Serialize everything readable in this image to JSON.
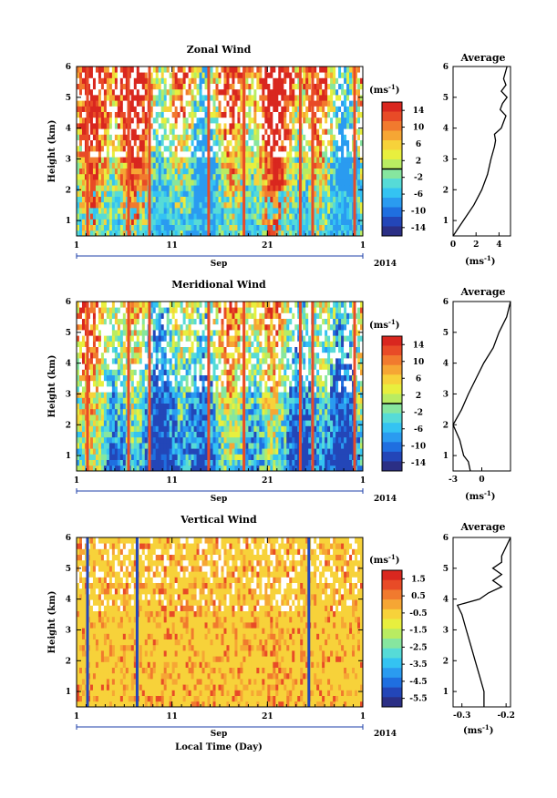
{
  "figure": {
    "xlabel": "Local Time (Day)",
    "month": "Sep",
    "year": "2014",
    "ylabel": "Height (km)",
    "unit": "(ms",
    "unit_sup": "-1",
    "unit_close": ")",
    "avg_title": "Average"
  },
  "colormap": [
    "#2b2f85",
    "#2346b8",
    "#1f6fe0",
    "#2a9bf0",
    "#34c3f2",
    "#56dbd7",
    "#86e69f",
    "#b9ec62",
    "#e8ef3e",
    "#f7d23a",
    "#f6a634",
    "#f17a2e",
    "#e84b27",
    "#d9271f"
  ],
  "chart_data": [
    {
      "type": "heatmap",
      "title": "Zonal Wind",
      "xlabel": "Sep",
      "ylabel": "Height (km)",
      "x_ticks": [
        "1",
        "11",
        "21",
        "1"
      ],
      "xlim": [
        1,
        31
      ],
      "ylim": [
        0.5,
        6
      ],
      "y_ticks": [
        "1",
        "2",
        "3",
        "4",
        "5",
        "6"
      ],
      "colorbar": {
        "unit": "(ms-1)",
        "labels": [
          "14",
          "10",
          "6",
          "2",
          "-2",
          "-6",
          "-10",
          "-14"
        ],
        "range": [
          -14,
          14
        ]
      },
      "average_profile": {
        "title": "Average",
        "xlabel": "(ms-1)",
        "x_ticks": [
          "0",
          "2",
          "4"
        ],
        "xlim": [
          0,
          5
        ],
        "height": [
          0.5,
          1.0,
          1.5,
          2.0,
          2.5,
          3.0,
          3.4,
          3.6,
          3.8,
          4.0,
          4.2,
          4.4,
          4.6,
          4.8,
          5.0,
          5.2,
          5.4,
          5.6,
          6.0
        ],
        "value": [
          0.0,
          0.9,
          1.8,
          2.5,
          3.0,
          3.3,
          3.6,
          3.7,
          3.6,
          4.2,
          4.4,
          4.6,
          4.1,
          4.3,
          4.7,
          4.2,
          4.6,
          4.4,
          4.7
        ]
      }
    },
    {
      "type": "heatmap",
      "title": "Meridional Wind",
      "xlabel": "Sep",
      "ylabel": "Height (km)",
      "x_ticks": [
        "1",
        "11",
        "21",
        "1"
      ],
      "xlim": [
        1,
        31
      ],
      "ylim": [
        0.5,
        6
      ],
      "y_ticks": [
        "1",
        "2",
        "3",
        "4",
        "5",
        "6"
      ],
      "colorbar": {
        "unit": "(ms-1)",
        "labels": [
          "14",
          "10",
          "6",
          "2",
          "-2",
          "-6",
          "-10",
          "-14"
        ],
        "range": [
          -14,
          14
        ]
      },
      "average_profile": {
        "title": "Average",
        "xlabel": "(ms-1)",
        "x_ticks": [
          "-3",
          "0"
        ],
        "xlim": [
          -3,
          3
        ],
        "height": [
          0.5,
          0.8,
          1.0,
          1.5,
          2.0,
          2.5,
          3.0,
          3.5,
          4.0,
          4.5,
          5.0,
          5.5,
          6.0
        ],
        "value": [
          -1.2,
          -1.4,
          -1.9,
          -2.3,
          -3.0,
          -2.1,
          -1.4,
          -0.6,
          0.2,
          1.2,
          1.8,
          2.6,
          3.0
        ]
      }
    },
    {
      "type": "heatmap",
      "title": "Vertical Wind",
      "xlabel": "Local Time (Day)",
      "ylabel": "Height (km)",
      "x_ticks": [
        "1",
        "11",
        "21",
        "1"
      ],
      "xlim": [
        1,
        31
      ],
      "ylim": [
        0.5,
        6
      ],
      "y_ticks": [
        "1",
        "2",
        "3",
        "4",
        "5",
        "6"
      ],
      "colorbar": {
        "unit": "(ms-1)",
        "labels": [
          "1.5",
          "0.5",
          "-0.5",
          "-1.5",
          "-2.5",
          "-3.5",
          "-4.5",
          "-5.5"
        ],
        "range": [
          -6,
          2
        ]
      },
      "average_profile": {
        "title": "Average",
        "xlabel": "(ms-1)",
        "x_ticks": [
          "-0.3",
          "-0.2"
        ],
        "xlim": [
          -0.32,
          -0.19
        ],
        "height": [
          0.5,
          1.0,
          1.5,
          2.0,
          2.5,
          3.0,
          3.5,
          3.8,
          4.0,
          4.2,
          4.4,
          4.6,
          4.8,
          5.0,
          5.2,
          5.4,
          5.7,
          6.0
        ],
        "value": [
          -0.25,
          -0.25,
          -0.26,
          -0.27,
          -0.28,
          -0.29,
          -0.3,
          -0.31,
          -0.26,
          -0.24,
          -0.21,
          -0.23,
          -0.21,
          -0.23,
          -0.21,
          -0.21,
          -0.2,
          -0.19
        ]
      }
    }
  ]
}
